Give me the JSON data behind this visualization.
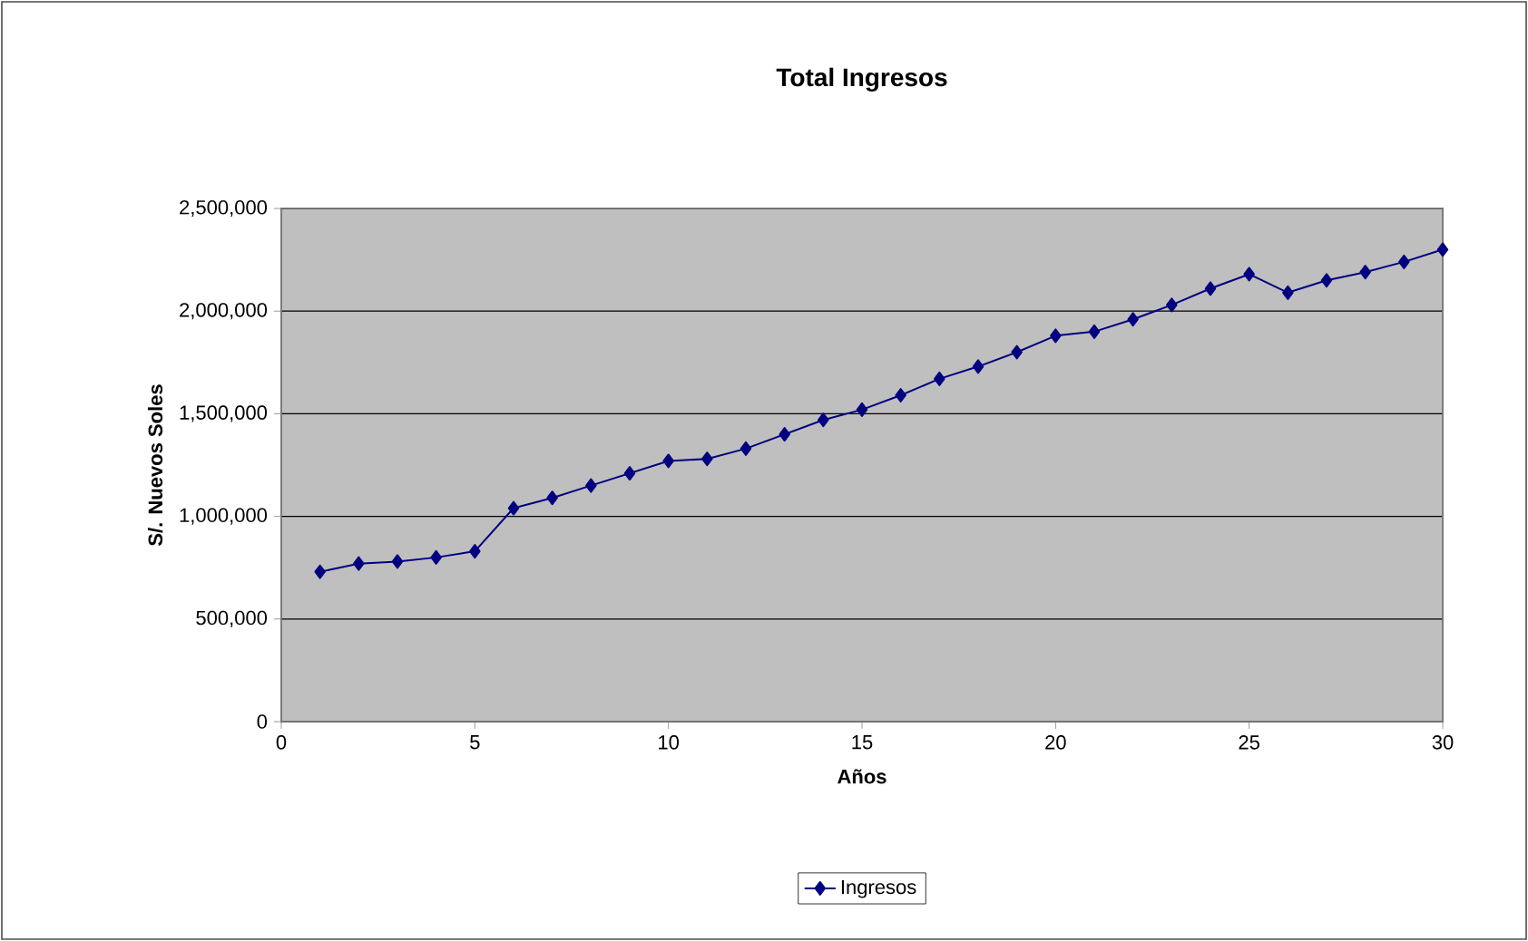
{
  "chart_data": {
    "type": "line",
    "title": "Total Ingresos",
    "xlabel": "Años",
    "ylabel": "S/. Nuevos Soles",
    "x": [
      1,
      2,
      3,
      4,
      5,
      6,
      7,
      8,
      9,
      10,
      11,
      12,
      13,
      14,
      15,
      16,
      17,
      18,
      19,
      20,
      21,
      22,
      23,
      24,
      25,
      26,
      27,
      28,
      29,
      30
    ],
    "series": [
      {
        "name": "Ingresos",
        "color": "#000080",
        "values": [
          730000,
          770000,
          780000,
          800000,
          830000,
          1040000,
          1090000,
          1150000,
          1210000,
          1270000,
          1280000,
          1330000,
          1400000,
          1470000,
          1520000,
          1590000,
          1670000,
          1730000,
          1800000,
          1880000,
          1900000,
          1960000,
          2030000,
          2110000,
          2180000,
          2090000,
          2150000,
          2190000,
          2240000,
          2300000
        ]
      }
    ],
    "xlim": [
      0,
      30
    ],
    "xticks": [
      0,
      5,
      10,
      15,
      20,
      25,
      30
    ],
    "ylim": [
      0,
      2500000
    ],
    "yticks": [
      {
        "value": 0,
        "label": "0"
      },
      {
        "value": 500000,
        "label": "500,000"
      },
      {
        "value": 1000000,
        "label": "1,000,000"
      },
      {
        "value": 1500000,
        "label": "1,500,000"
      },
      {
        "value": 2000000,
        "label": "2,000,000"
      },
      {
        "value": 2500000,
        "label": "2,500,000"
      }
    ],
    "grid": "y",
    "legend": "bottom",
    "marker": "diamond",
    "line_style": "solid"
  }
}
